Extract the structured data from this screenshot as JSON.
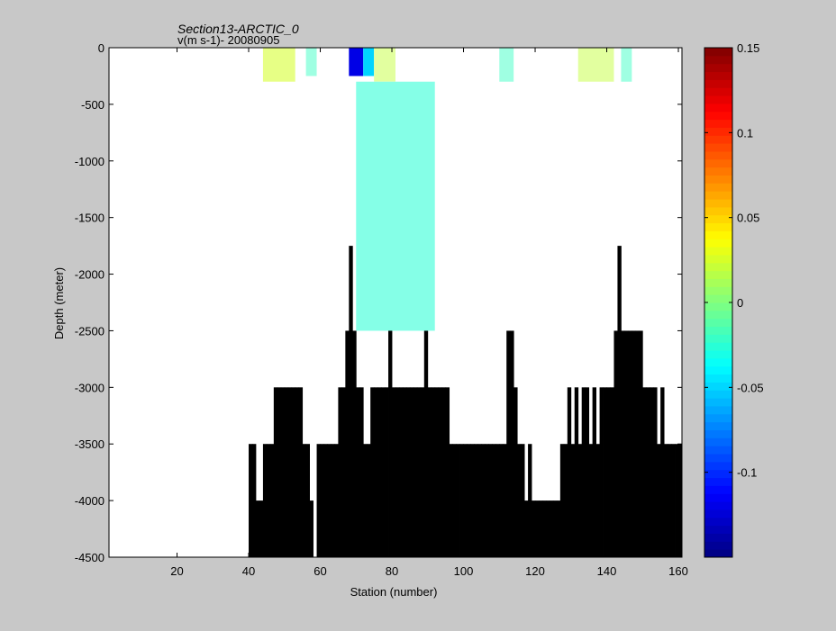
{
  "chart_data": {
    "type": "heatmap",
    "title": "Section13-ARCTIC_0",
    "subtitle": "v(m s-1)- 20080905",
    "xlabel": "Station (number)",
    "ylabel": "Depth (meter)",
    "xlim": [
      1,
      161
    ],
    "ylim": [
      -4500,
      0
    ],
    "x_ticks": [
      20,
      40,
      60,
      80,
      100,
      120,
      140,
      160
    ],
    "y_ticks": [
      0,
      -500,
      -1000,
      -1500,
      -2000,
      -2500,
      -3000,
      -3500,
      -4000,
      -4500
    ],
    "colorbar": {
      "range": [
        -0.15,
        0.15
      ],
      "ticks": [
        0.15,
        0.1,
        0.05,
        0,
        -0.05,
        -0.1
      ],
      "colormap": "jet",
      "levels": 64
    },
    "bottom_depth": [
      [
        40,
        -3500
      ],
      [
        41,
        -3500
      ],
      [
        42,
        -4000
      ],
      [
        43,
        -4000
      ],
      [
        44,
        -3500
      ],
      [
        45,
        -3500
      ],
      [
        46,
        -3500
      ],
      [
        47,
        -3000
      ],
      [
        48,
        -3000
      ],
      [
        49,
        -3000
      ],
      [
        50,
        -3000
      ],
      [
        51,
        -3000
      ],
      [
        52,
        -3000
      ],
      [
        53,
        -3000
      ],
      [
        54,
        -3000
      ],
      [
        55,
        -3500
      ],
      [
        56,
        -3500
      ],
      [
        57,
        -4000
      ],
      [
        58,
        -4500
      ],
      [
        59,
        -3500
      ],
      [
        60,
        -3500
      ],
      [
        61,
        -3500
      ],
      [
        62,
        -3500
      ],
      [
        63,
        -3500
      ],
      [
        64,
        -3500
      ],
      [
        65,
        -3000
      ],
      [
        66,
        -3000
      ],
      [
        67,
        -2500
      ],
      [
        68,
        -1750
      ],
      [
        69,
        -2500
      ],
      [
        70,
        -3000
      ],
      [
        71,
        -3000
      ],
      [
        72,
        -3500
      ],
      [
        73,
        -3500
      ],
      [
        74,
        -3000
      ],
      [
        75,
        -3000
      ],
      [
        76,
        -3000
      ],
      [
        77,
        -3000
      ],
      [
        78,
        -3000
      ],
      [
        79,
        -2500
      ],
      [
        80,
        -3000
      ],
      [
        81,
        -3000
      ],
      [
        82,
        -3000
      ],
      [
        83,
        -3000
      ],
      [
        84,
        -3000
      ],
      [
        85,
        -3000
      ],
      [
        86,
        -3000
      ],
      [
        87,
        -3000
      ],
      [
        88,
        -3000
      ],
      [
        89,
        -2500
      ],
      [
        90,
        -3000
      ],
      [
        91,
        -3000
      ],
      [
        92,
        -3000
      ],
      [
        93,
        -3000
      ],
      [
        94,
        -3000
      ],
      [
        95,
        -3000
      ],
      [
        96,
        -3500
      ],
      [
        97,
        -3500
      ],
      [
        98,
        -3500
      ],
      [
        99,
        -3500
      ],
      [
        100,
        -3500
      ],
      [
        101,
        -3500
      ],
      [
        102,
        -3500
      ],
      [
        103,
        -3500
      ],
      [
        104,
        -3500
      ],
      [
        105,
        -3500
      ],
      [
        106,
        -3500
      ],
      [
        107,
        -3500
      ],
      [
        108,
        -3500
      ],
      [
        109,
        -3500
      ],
      [
        110,
        -3500
      ],
      [
        111,
        -3500
      ],
      [
        112,
        -2500
      ],
      [
        113,
        -2500
      ],
      [
        114,
        -3000
      ],
      [
        115,
        -3500
      ],
      [
        116,
        -3500
      ],
      [
        117,
        -4000
      ],
      [
        118,
        -3500
      ],
      [
        119,
        -4000
      ],
      [
        120,
        -4000
      ],
      [
        121,
        -4000
      ],
      [
        122,
        -4000
      ],
      [
        123,
        -4000
      ],
      [
        124,
        -4000
      ],
      [
        125,
        -4000
      ],
      [
        126,
        -4000
      ],
      [
        127,
        -3500
      ],
      [
        128,
        -3500
      ],
      [
        129,
        -3000
      ],
      [
        130,
        -3500
      ],
      [
        131,
        -3000
      ],
      [
        132,
        -3500
      ],
      [
        133,
        -3000
      ],
      [
        134,
        -3000
      ],
      [
        135,
        -3500
      ],
      [
        136,
        -3000
      ],
      [
        137,
        -3500
      ],
      [
        138,
        -3000
      ],
      [
        139,
        -3000
      ],
      [
        140,
        -3000
      ],
      [
        141,
        -3000
      ],
      [
        142,
        -2500
      ],
      [
        143,
        -1750
      ],
      [
        144,
        -2500
      ],
      [
        145,
        -2500
      ],
      [
        146,
        -2500
      ],
      [
        147,
        -2500
      ],
      [
        148,
        -2500
      ],
      [
        149,
        -2500
      ],
      [
        150,
        -3000
      ],
      [
        151,
        -3000
      ],
      [
        152,
        -3000
      ],
      [
        153,
        -3000
      ],
      [
        154,
        -3500
      ],
      [
        155,
        -3000
      ],
      [
        156,
        -3500
      ],
      [
        157,
        -3500
      ],
      [
        158,
        -3500
      ],
      [
        159,
        -3500
      ],
      [
        160,
        -3500
      ],
      [
        161,
        -3500
      ]
    ],
    "velocity_features": [
      {
        "stations": [
          68,
          71
        ],
        "depth": [
          -250,
          0
        ],
        "value": -0.12
      },
      {
        "stations": [
          72,
          74
        ],
        "depth": [
          -250,
          0
        ],
        "value": -0.05
      },
      {
        "stations": [
          75,
          80
        ],
        "depth": [
          -300,
          0
        ],
        "value": 0.02
      },
      {
        "stations": [
          44,
          52
        ],
        "depth": [
          -300,
          0
        ],
        "value": 0.025
      },
      {
        "stations": [
          70,
          91
        ],
        "depth": [
          -2500,
          -300
        ],
        "value": -0.025
      },
      {
        "stations": [
          110,
          113
        ],
        "depth": [
          -300,
          0
        ],
        "value": -0.02
      },
      {
        "stations": [
          144,
          146
        ],
        "depth": [
          -300,
          0
        ],
        "value": -0.02
      },
      {
        "stations": [
          132,
          141
        ],
        "depth": [
          -300,
          0
        ],
        "value": 0.02
      },
      {
        "stations": [
          56,
          58
        ],
        "depth": [
          -250,
          0
        ],
        "value": -0.02
      }
    ]
  }
}
